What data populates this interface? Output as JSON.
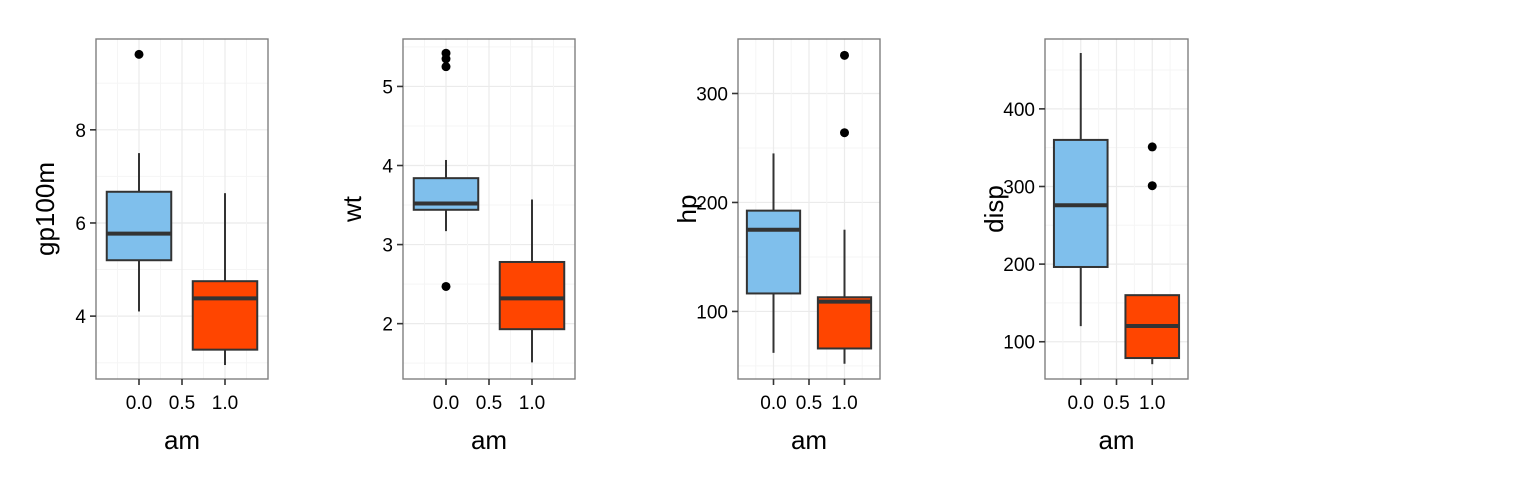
{
  "chart_data": [
    {
      "type": "box",
      "xlabel": "am",
      "ylabel": "gp100m",
      "x_ticks": [
        0.0,
        0.5,
        1.0
      ],
      "x_tick_labels": [
        "0.0",
        "0.5",
        "1.0"
      ],
      "xlim": [
        -0.5,
        1.5
      ],
      "ylim": [
        2.65,
        9.95
      ],
      "y_ticks": [
        4,
        6,
        8
      ],
      "y_tick_labels": [
        "4",
        "6",
        "8"
      ],
      "grid": true,
      "boxes": [
        {
          "x": 0,
          "fill": "#7FBFEC",
          "min": 4.1,
          "q1": 5.2,
          "median": 5.77,
          "q3": 6.67,
          "max": 7.5,
          "outliers": [
            9.62
          ]
        },
        {
          "x": 1,
          "fill": "#FF4500",
          "min": 2.95,
          "q1": 3.28,
          "median": 4.38,
          "q3": 4.75,
          "max": 6.64,
          "outliers": []
        }
      ]
    },
    {
      "type": "box",
      "xlabel": "am",
      "ylabel": "wt",
      "x_ticks": [
        0.0,
        0.5,
        1.0
      ],
      "x_tick_labels": [
        "0.0",
        "0.5",
        "1.0"
      ],
      "xlim": [
        -0.5,
        1.5
      ],
      "ylim": [
        1.3,
        5.6
      ],
      "y_ticks": [
        2,
        3,
        4,
        5
      ],
      "y_tick_labels": [
        "2",
        "3",
        "4",
        "5"
      ],
      "grid": true,
      "boxes": [
        {
          "x": 0,
          "fill": "#7FBFEC",
          "min": 3.17,
          "q1": 3.44,
          "median": 3.52,
          "q3": 3.84,
          "max": 4.07,
          "outliers": [
            2.47,
            5.25,
            5.35,
            5.42
          ]
        },
        {
          "x": 1,
          "fill": "#FF4500",
          "min": 1.51,
          "q1": 1.93,
          "median": 2.32,
          "q3": 2.78,
          "max": 3.57,
          "outliers": []
        }
      ]
    },
    {
      "type": "box",
      "xlabel": "am",
      "ylabel": "hp",
      "x_ticks": [
        0.0,
        0.5,
        1.0
      ],
      "x_tick_labels": [
        "0.0",
        "0.5",
        "1.0"
      ],
      "xlim": [
        -0.5,
        1.5
      ],
      "ylim": [
        38,
        350
      ],
      "y_ticks": [
        100,
        200,
        300
      ],
      "y_tick_labels": [
        "100",
        "200",
        "300"
      ],
      "grid": true,
      "boxes": [
        {
          "x": 0,
          "fill": "#7FBFEC",
          "min": 62,
          "q1": 116.5,
          "median": 175,
          "q3": 192.5,
          "max": 245,
          "outliers": []
        },
        {
          "x": 1,
          "fill": "#FF4500",
          "min": 52,
          "q1": 66,
          "median": 109,
          "q3": 113,
          "max": 175,
          "outliers": [
            264,
            335
          ]
        }
      ]
    },
    {
      "type": "box",
      "xlabel": "am",
      "ylabel": "disp",
      "x_ticks": [
        0.0,
        0.5,
        1.0
      ],
      "x_tick_labels": [
        "0.0",
        "0.5",
        "1.0"
      ],
      "xlim": [
        -0.5,
        1.5
      ],
      "ylim": [
        52,
        490
      ],
      "y_ticks": [
        100,
        200,
        300,
        400
      ],
      "y_tick_labels": [
        "100",
        "200",
        "300",
        "400"
      ],
      "grid": true,
      "boxes": [
        {
          "x": 0,
          "fill": "#7FBFEC",
          "min": 120.1,
          "q1": 196.3,
          "median": 275.8,
          "q3": 360,
          "max": 472,
          "outliers": []
        },
        {
          "x": 1,
          "fill": "#FF4500",
          "min": 71.1,
          "q1": 79,
          "median": 120.3,
          "q3": 160,
          "max": 160,
          "outliers": [
            301,
            351
          ]
        }
      ]
    }
  ]
}
